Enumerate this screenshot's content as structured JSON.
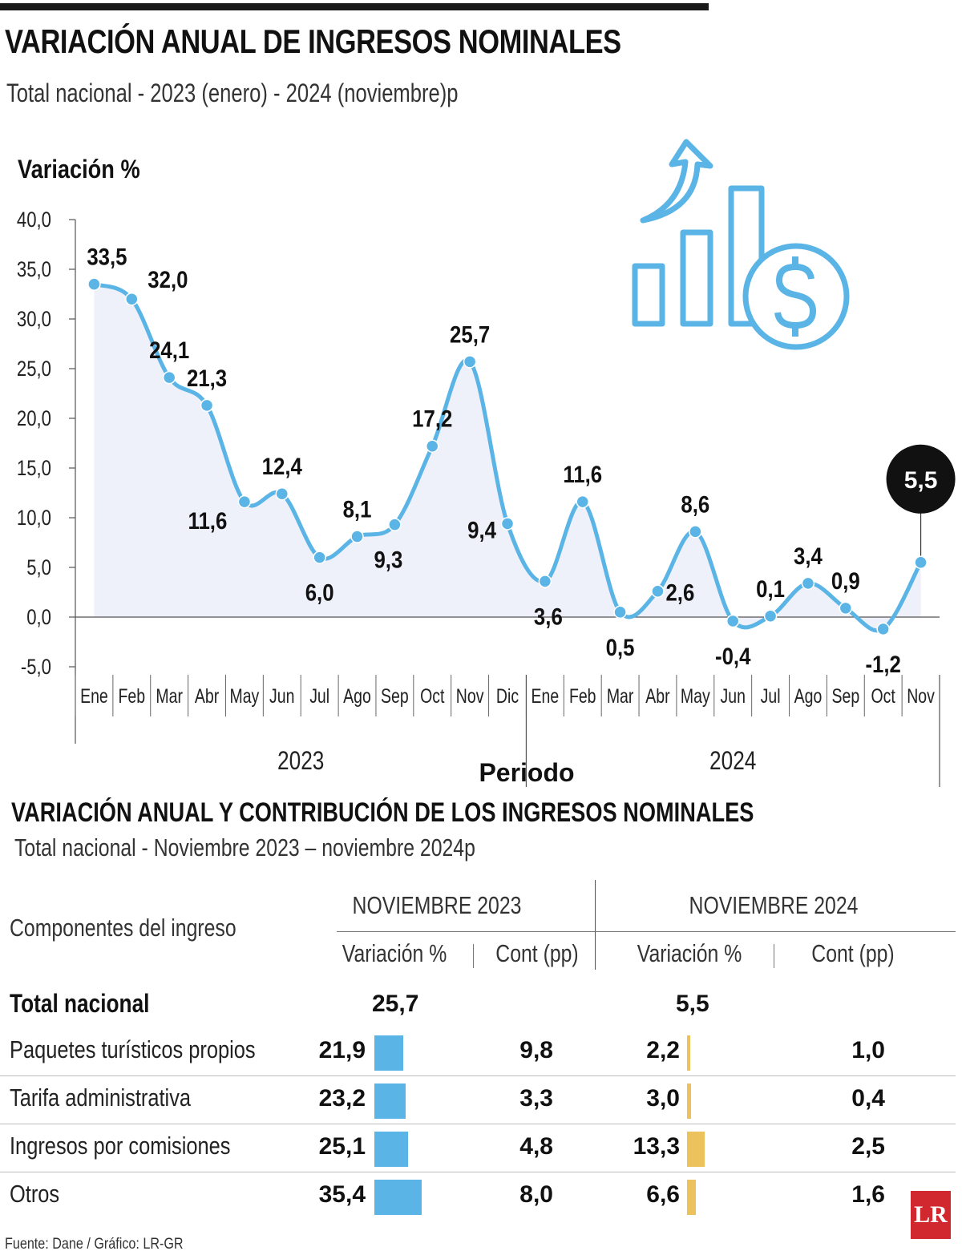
{
  "header": {
    "title": "VARIACIÓN ANUAL DE INGRESOS NOMINALES",
    "subtitle": "Total nacional - 2023 (enero) - 2024 (noviembre)p"
  },
  "chart_data": {
    "type": "area",
    "title": "VARIACIÓN ANUAL DE INGRESOS NOMINALES",
    "ylabel": "Variación %",
    "xlabel": "Periodo",
    "ylim": [
      -5,
      40
    ],
    "yticks": [
      40.0,
      35.0,
      30.0,
      25.0,
      20.0,
      15.0,
      10.0,
      5.0,
      0.0,
      -5.0
    ],
    "ytick_labels": [
      "40,0",
      "35,0",
      "30,0",
      "25,0",
      "20,0",
      "15,0",
      "10,0",
      "5,0",
      "0,0",
      "-5,0"
    ],
    "categories": [
      "Ene",
      "Feb",
      "Mar",
      "Abr",
      "May",
      "Jun",
      "Jul",
      "Ago",
      "Sep",
      "Oct",
      "Nov",
      "Dic",
      "Ene",
      "Feb",
      "Mar",
      "Abr",
      "May",
      "Jun",
      "Jul",
      "Ago",
      "Sep",
      "Oct",
      "Nov"
    ],
    "years": [
      {
        "label": "2023",
        "months": 12
      },
      {
        "label": "2024",
        "months": 11
      }
    ],
    "values": [
      33.5,
      32.0,
      24.1,
      21.3,
      11.6,
      12.4,
      6.0,
      8.1,
      9.3,
      17.2,
      25.7,
      9.4,
      3.6,
      11.6,
      0.5,
      2.6,
      8.6,
      -0.4,
      0.1,
      3.4,
      0.9,
      -1.2,
      5.5
    ],
    "value_labels": [
      "33,5",
      "32,0",
      "24,1",
      "21,3",
      "11,6",
      "12,4",
      "6,0",
      "8,1",
      "9,3",
      "17,2",
      "25,7",
      "9,4",
      "3,6",
      "11,6",
      "0,5",
      "2,6",
      "8,6",
      "-0,4",
      "0,1",
      "3,4",
      "0,9",
      "-1,2",
      "5,5"
    ],
    "label_placement": [
      "above",
      "above",
      "above",
      "above",
      "below",
      "above",
      "below",
      "above",
      "below",
      "above",
      "above",
      "left",
      "below",
      "above",
      "below",
      "right",
      "above",
      "below",
      "above",
      "above",
      "above",
      "below",
      "callout"
    ],
    "highlight_label": "5,5",
    "colors": {
      "line": "#5ab4e5",
      "fill": "#eef0fa",
      "callout": "#111111",
      "icon": "#5ab4e5"
    }
  },
  "table": {
    "title": "VARIACIÓN ANUAL Y CONTRIBUCIÓN DE LOS INGRESOS NOMINALES",
    "subtitle": "Total nacional - Noviembre 2023 – noviembre 2024p",
    "components_header": "Componentes del ingreso",
    "period_2023": "NOVIEMBRE 2023",
    "period_2024": "NOVIEMBRE 2024",
    "col_variation": "Variación %",
    "col_contribution": "Cont (pp)",
    "total": {
      "label": "Total nacional",
      "var_2023": "25,7",
      "var_2024": "5,5"
    },
    "rows": [
      {
        "label": "Paquetes turísticos propios",
        "var_2023": "21,9",
        "bar_2023": 21.9,
        "cont_2023": "9,8",
        "var_2024": "2,2",
        "bar_2024": 2.2,
        "cont_2024": "1,0"
      },
      {
        "label": "Tarifa administrativa",
        "var_2023": "23,2",
        "bar_2023": 23.2,
        "cont_2023": "3,3",
        "var_2024": "3,0",
        "bar_2024": 3.0,
        "cont_2024": "0,4"
      },
      {
        "label": "Ingresos por comisiones",
        "var_2023": "25,1",
        "bar_2023": 25.1,
        "cont_2023": "4,8",
        "var_2024": "13,3",
        "bar_2024": 13.3,
        "cont_2024": "2,5"
      },
      {
        "label": "Otros",
        "var_2023": "35,4",
        "bar_2023": 35.4,
        "cont_2023": "8,0",
        "var_2024": "6,6",
        "bar_2024": 6.6,
        "cont_2024": "1,6"
      }
    ],
    "colors": {
      "bar_2023": "#5ab4e5",
      "bar_2024": "#ebc25c"
    }
  },
  "footer": {
    "source": "Fuente: Dane / Gráfico: LR-GR",
    "logo": "LR"
  }
}
